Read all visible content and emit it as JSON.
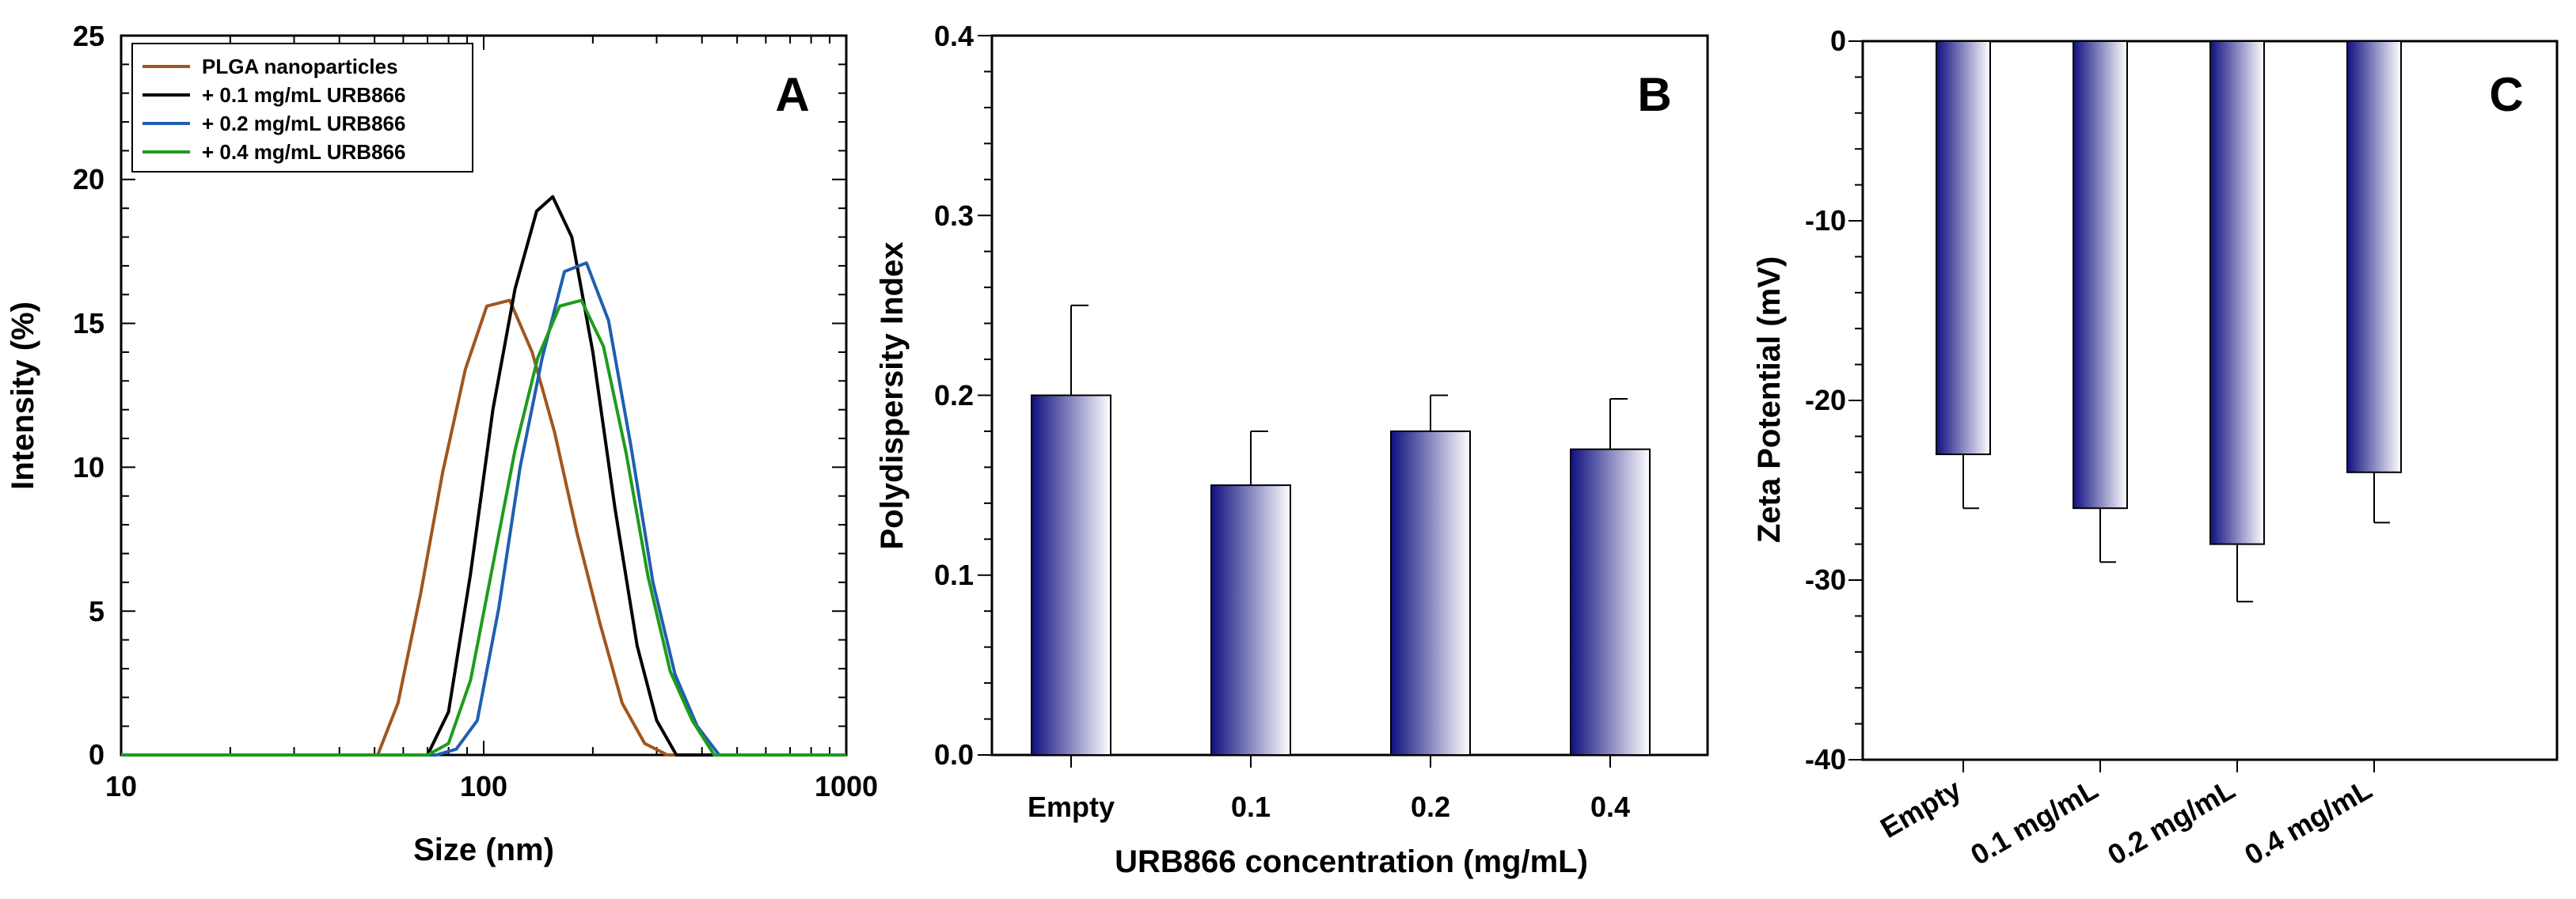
{
  "chart_data": [
    {
      "type": "line",
      "panel_label": "A",
      "title": "",
      "xlabel": "Size (nm)",
      "ylabel": "Intensity (%)",
      "xscale": "log",
      "xlim": [
        10,
        1000
      ],
      "ylim": [
        0,
        25
      ],
      "xticks": [
        10,
        100,
        1000
      ],
      "xtick_labels": [
        "10",
        "100",
        "1000"
      ],
      "yticks": [
        0,
        5,
        10,
        15,
        20,
        25
      ],
      "ytick_labels": [
        "0",
        "5",
        "10",
        "15",
        "20",
        "25"
      ],
      "legend_position": "top-left",
      "series": [
        {
          "name": "PLGA nanoparticles",
          "color": "#a0561f",
          "x": [
            10,
            51,
            58,
            67,
            77,
            89,
            102,
            118,
            136,
            157,
            181,
            209,
            241,
            278,
            321,
            370,
            1000
          ],
          "y": [
            0,
            0,
            1.8,
            5.6,
            9.8,
            13.4,
            15.6,
            15.8,
            14.0,
            11.2,
            7.7,
            4.6,
            1.8,
            0.4,
            0,
            0,
            0
          ]
        },
        {
          "name": "+ 0.1 mg/mL URB866",
          "color": "#000000",
          "x": [
            10,
            70,
            80,
            92,
            106,
            122,
            140,
            155,
            175,
            200,
            230,
            265,
            300,
            340,
            1000
          ],
          "y": [
            0,
            0,
            1.5,
            6.3,
            12.0,
            16.2,
            18.9,
            19.4,
            18.0,
            14.0,
            8.6,
            3.8,
            1.2,
            0,
            0
          ]
        },
        {
          "name": "+ 0.2 mg/mL URB866",
          "color": "#1f5faf",
          "x": [
            10,
            74,
            84,
            96,
            110,
            126,
            145,
            167,
            192,
            221,
            255,
            293,
            337,
            388,
            446,
            1000
          ],
          "y": [
            0,
            0,
            0.2,
            1.2,
            5.1,
            10.0,
            13.8,
            16.8,
            17.1,
            15.1,
            10.7,
            6.0,
            2.8,
            1.0,
            0,
            0
          ]
        },
        {
          "name": "+ 0.4 mg/mL URB866",
          "color": "#1e9b1e",
          "x": [
            10,
            70,
            80,
            92,
            106,
            122,
            141,
            162,
            186,
            214,
            247,
            284,
            327,
            376,
            432,
            1000
          ],
          "y": [
            0,
            0,
            0.4,
            2.6,
            6.6,
            10.6,
            13.8,
            15.6,
            15.8,
            14.2,
            10.5,
            6.2,
            2.9,
            1.2,
            0,
            0
          ]
        }
      ]
    },
    {
      "type": "bar",
      "panel_label": "B",
      "title": "",
      "xlabel": "URB866 concentration (mg/mL)",
      "ylabel": "Polydispersity Index",
      "categories": [
        "Empty",
        "0.1",
        "0.2",
        "0.4"
      ],
      "values": [
        0.2,
        0.15,
        0.18,
        0.17
      ],
      "error_plus": [
        0.05,
        0.03,
        0.02,
        0.028
      ],
      "ylim": [
        0,
        0.4
      ],
      "yticks": [
        0,
        0.1,
        0.2,
        0.3,
        0.4
      ],
      "ytick_labels": [
        "0.0",
        "0.1",
        "0.2",
        "0.3",
        "0.4"
      ],
      "bar_color_dark": "#101080",
      "bar_color_light": "#ffffff"
    },
    {
      "type": "bar",
      "panel_label": "C",
      "title": "",
      "xlabel": "",
      "ylabel": "Zeta Potential (mV)",
      "categories": [
        "Empty",
        "0.1 mg/mL",
        "0.2 mg/mL",
        "0.4 mg/mL"
      ],
      "values": [
        -23,
        -26,
        -28,
        -24
      ],
      "error_minus": [
        3,
        3,
        3.2,
        2.8
      ],
      "ylim": [
        -40,
        0
      ],
      "yticks": [
        -40,
        -30,
        -20,
        -10,
        0
      ],
      "ytick_labels": [
        "-40",
        "-30",
        "-20",
        "-10",
        "0"
      ],
      "bar_color_dark": "#101080",
      "bar_color_light": "#ffffff"
    }
  ]
}
